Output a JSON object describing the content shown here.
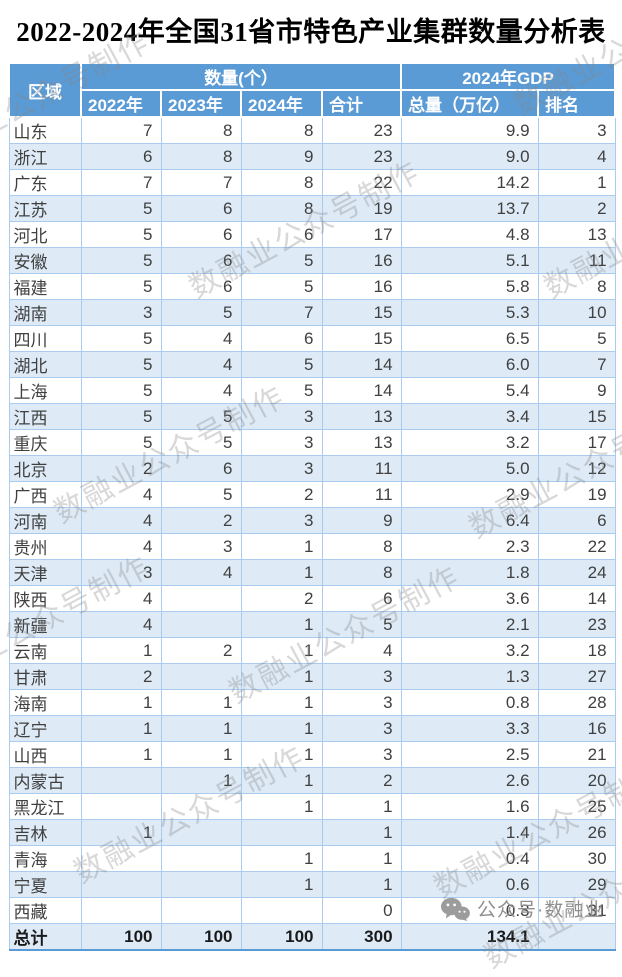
{
  "title": "2022-2024年全国31省市特色产业集群数量分析表",
  "table": {
    "header": {
      "region": "区域",
      "quantity_group": "数量(个）",
      "gdp_group": "2024年GDP",
      "year_2022": "2022年",
      "year_2023": "2023年",
      "year_2024": "2024年",
      "total": "合计",
      "gdp_total": "总量（万亿）",
      "rank": "排名"
    },
    "rows": [
      {
        "region": "山东",
        "y2022": "7",
        "y2023": "8",
        "y2024": "8",
        "total": "23",
        "gdp": "9.9",
        "rank": "3"
      },
      {
        "region": "浙江",
        "y2022": "6",
        "y2023": "8",
        "y2024": "9",
        "total": "23",
        "gdp": "9.0",
        "rank": "4"
      },
      {
        "region": "广东",
        "y2022": "7",
        "y2023": "7",
        "y2024": "8",
        "total": "22",
        "gdp": "14.2",
        "rank": "1"
      },
      {
        "region": "江苏",
        "y2022": "5",
        "y2023": "6",
        "y2024": "8",
        "total": "19",
        "gdp": "13.7",
        "rank": "2"
      },
      {
        "region": "河北",
        "y2022": "5",
        "y2023": "6",
        "y2024": "6",
        "total": "17",
        "gdp": "4.8",
        "rank": "13"
      },
      {
        "region": "安徽",
        "y2022": "5",
        "y2023": "6",
        "y2024": "5",
        "total": "16",
        "gdp": "5.1",
        "rank": "11"
      },
      {
        "region": "福建",
        "y2022": "5",
        "y2023": "6",
        "y2024": "5",
        "total": "16",
        "gdp": "5.8",
        "rank": "8"
      },
      {
        "region": "湖南",
        "y2022": "3",
        "y2023": "5",
        "y2024": "7",
        "total": "15",
        "gdp": "5.3",
        "rank": "10"
      },
      {
        "region": "四川",
        "y2022": "5",
        "y2023": "4",
        "y2024": "6",
        "total": "15",
        "gdp": "6.5",
        "rank": "5"
      },
      {
        "region": "湖北",
        "y2022": "5",
        "y2023": "4",
        "y2024": "5",
        "total": "14",
        "gdp": "6.0",
        "rank": "7"
      },
      {
        "region": "上海",
        "y2022": "5",
        "y2023": "4",
        "y2024": "5",
        "total": "14",
        "gdp": "5.4",
        "rank": "9"
      },
      {
        "region": "江西",
        "y2022": "5",
        "y2023": "5",
        "y2024": "3",
        "total": "13",
        "gdp": "3.4",
        "rank": "15"
      },
      {
        "region": "重庆",
        "y2022": "5",
        "y2023": "5",
        "y2024": "3",
        "total": "13",
        "gdp": "3.2",
        "rank": "17"
      },
      {
        "region": "北京",
        "y2022": "2",
        "y2023": "6",
        "y2024": "3",
        "total": "11",
        "gdp": "5.0",
        "rank": "12"
      },
      {
        "region": "广西",
        "y2022": "4",
        "y2023": "5",
        "y2024": "2",
        "total": "11",
        "gdp": "2.9",
        "rank": "19"
      },
      {
        "region": "河南",
        "y2022": "4",
        "y2023": "2",
        "y2024": "3",
        "total": "9",
        "gdp": "6.4",
        "rank": "6"
      },
      {
        "region": "贵州",
        "y2022": "4",
        "y2023": "3",
        "y2024": "1",
        "total": "8",
        "gdp": "2.3",
        "rank": "22"
      },
      {
        "region": "天津",
        "y2022": "3",
        "y2023": "4",
        "y2024": "1",
        "total": "8",
        "gdp": "1.8",
        "rank": "24"
      },
      {
        "region": "陕西",
        "y2022": "4",
        "y2023": "",
        "y2024": "2",
        "total": "6",
        "gdp": "3.6",
        "rank": "14"
      },
      {
        "region": "新疆",
        "y2022": "4",
        "y2023": "",
        "y2024": "1",
        "total": "5",
        "gdp": "2.1",
        "rank": "23"
      },
      {
        "region": "云南",
        "y2022": "1",
        "y2023": "2",
        "y2024": "1",
        "total": "4",
        "gdp": "3.2",
        "rank": "18"
      },
      {
        "region": "甘肃",
        "y2022": "2",
        "y2023": "",
        "y2024": "1",
        "total": "3",
        "gdp": "1.3",
        "rank": "27"
      },
      {
        "region": "海南",
        "y2022": "1",
        "y2023": "1",
        "y2024": "1",
        "total": "3",
        "gdp": "0.8",
        "rank": "28"
      },
      {
        "region": "辽宁",
        "y2022": "1",
        "y2023": "1",
        "y2024": "1",
        "total": "3",
        "gdp": "3.3",
        "rank": "16"
      },
      {
        "region": "山西",
        "y2022": "1",
        "y2023": "1",
        "y2024": "1",
        "total": "3",
        "gdp": "2.5",
        "rank": "21"
      },
      {
        "region": "内蒙古",
        "y2022": "",
        "y2023": "1",
        "y2024": "1",
        "total": "2",
        "gdp": "2.6",
        "rank": "20"
      },
      {
        "region": "黑龙江",
        "y2022": "",
        "y2023": "",
        "y2024": "1",
        "total": "1",
        "gdp": "1.6",
        "rank": "25"
      },
      {
        "region": "吉林",
        "y2022": "1",
        "y2023": "",
        "y2024": "",
        "total": "1",
        "gdp": "1.4",
        "rank": "26"
      },
      {
        "region": "青海",
        "y2022": "",
        "y2023": "",
        "y2024": "1",
        "total": "1",
        "gdp": "0.4",
        "rank": "30"
      },
      {
        "region": "宁夏",
        "y2022": "",
        "y2023": "",
        "y2024": "1",
        "total": "1",
        "gdp": "0.6",
        "rank": "29"
      },
      {
        "region": "西藏",
        "y2022": "",
        "y2023": "",
        "y2024": "",
        "total": "0",
        "gdp": "0.3",
        "rank": "31"
      }
    ],
    "total_row": {
      "region": "总计",
      "y2022": "100",
      "y2023": "100",
      "y2024": "100",
      "total": "300",
      "gdp": "134.1",
      "rank": ""
    }
  },
  "watermark": {
    "diagonal_text": "数融业公众号制作",
    "stamp_text": "公众号·数融业"
  },
  "colors": {
    "header_bg": "#5B9BD5",
    "stripe_bg": "#DEEBF7",
    "cell_border": "#A9CBEE",
    "body_text": "#404040"
  }
}
